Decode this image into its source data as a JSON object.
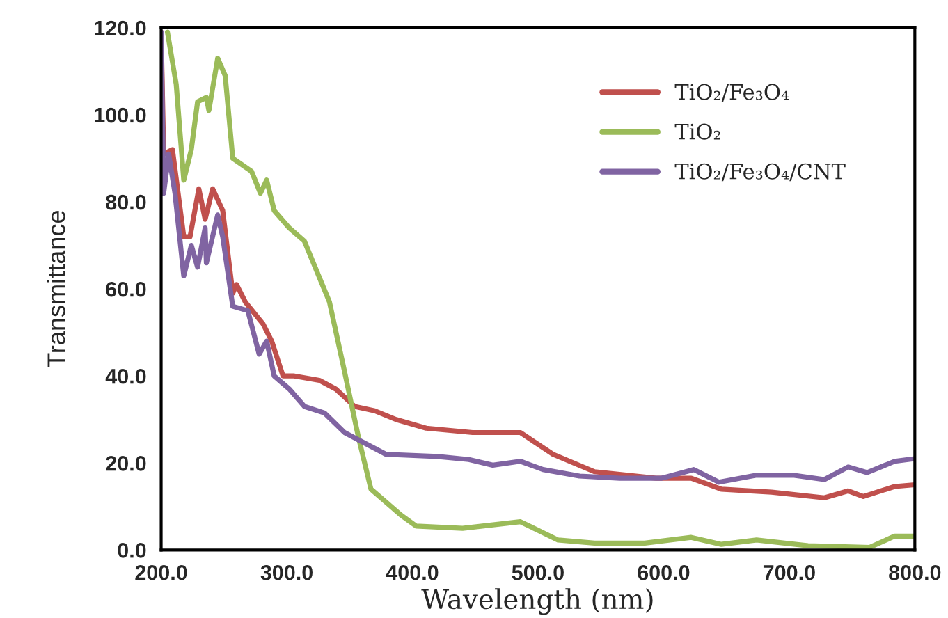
{
  "chart_data": {
    "type": "line",
    "xlabel": "Wavelength (nm)",
    "ylabel": "Transmittance",
    "xlim": [
      200,
      800
    ],
    "ylim": [
      0,
      120
    ],
    "xticks": [
      {
        "value": 200,
        "label": "200.0"
      },
      {
        "value": 300,
        "label": "300.0"
      },
      {
        "value": 400,
        "label": "400.0"
      },
      {
        "value": 500,
        "label": "500.0"
      },
      {
        "value": 600,
        "label": "600.0"
      },
      {
        "value": 700,
        "label": "700.0"
      },
      {
        "value": 800,
        "label": "800.0"
      }
    ],
    "yticks": [
      {
        "value": 0,
        "label": "0.0"
      },
      {
        "value": 20,
        "label": "20.0"
      },
      {
        "value": 40,
        "label": "40.0"
      },
      {
        "value": 60,
        "label": "60.0"
      },
      {
        "value": 80,
        "label": "80.0"
      },
      {
        "value": 100,
        "label": "100.0"
      },
      {
        "value": 120,
        "label": "120.0"
      }
    ],
    "grid": false,
    "legend": "top right",
    "marker": "none",
    "line_style": "solid",
    "series": [
      {
        "name": "TiO₂/Fe₃O₄",
        "color": "#c0504d",
        "x": [
          200,
          202,
          209,
          218,
          223,
          230,
          235,
          241,
          249,
          257,
          260,
          267,
          281,
          288,
          297,
          306,
          326,
          339,
          354,
          370,
          387,
          411,
          448,
          486,
          512,
          545,
          594,
          622,
          646,
          686,
          728,
          747,
          759,
          784,
          800
        ],
        "values": [
          119,
          91,
          92,
          72,
          72,
          83,
          76,
          83,
          78,
          59,
          61,
          57,
          52,
          48,
          40,
          40,
          39,
          37,
          33,
          32,
          30,
          28,
          27,
          27,
          22,
          18,
          16.5,
          16.5,
          14,
          13.3,
          12,
          13.6,
          12.3,
          14.6,
          15
        ]
      },
      {
        "name": "TiO₂",
        "color": "#9bbb59",
        "x": [
          205,
          212,
          218,
          224,
          229,
          236,
          238,
          245,
          251,
          257,
          272,
          279,
          284,
          290,
          302,
          314,
          324,
          334,
          346,
          357,
          367,
          391,
          403,
          440,
          486,
          516,
          545,
          585,
          622,
          646,
          674,
          715,
          764,
          784,
          800
        ],
        "values": [
          119,
          107,
          85,
          92,
          103,
          104,
          101,
          113,
          109,
          90,
          87,
          82,
          85,
          78,
          74,
          71,
          64,
          57,
          41,
          26,
          14,
          8,
          5.5,
          5,
          6.5,
          2.3,
          1.6,
          1.6,
          2.9,
          1.3,
          2.3,
          1,
          0.6,
          3.2,
          3.2
        ]
      },
      {
        "name": "TiO₂/Fe₃O₄/CNT",
        "color": "#8064a2",
        "x": [
          200,
          202,
          206,
          211,
          218,
          224,
          229,
          235,
          236,
          245,
          249,
          257,
          269,
          278,
          284,
          290,
          302,
          314,
          330,
          346,
          379,
          420,
          445,
          464,
          486,
          504,
          533,
          565,
          598,
          624,
          644,
          674,
          703,
          728,
          747,
          762,
          784,
          800
        ],
        "values": [
          119,
          82,
          91,
          82,
          63,
          70,
          65,
          74,
          66,
          77,
          72,
          56,
          55,
          45,
          48,
          40,
          37,
          33,
          31.5,
          27,
          22,
          21.5,
          20.8,
          19.5,
          20.4,
          18.5,
          17,
          16.5,
          16.5,
          18.5,
          15.6,
          17.2,
          17.2,
          16.2,
          19.1,
          17.8,
          20.4,
          21
        ]
      }
    ]
  }
}
